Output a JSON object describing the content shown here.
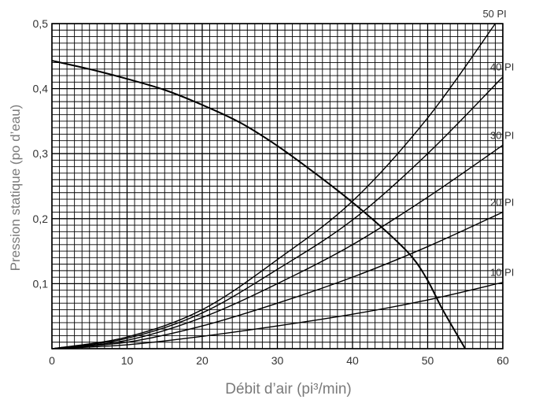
{
  "chart_data": {
    "type": "line",
    "xlabel": "Débit d’air (pi³/min)",
    "ylabel": "Pression statique (po d’eau)",
    "xlim": [
      0,
      60
    ],
    "ylim": [
      0,
      0.5
    ],
    "x_ticks": [
      "0",
      "10",
      "20",
      "30",
      "40",
      "50",
      "60"
    ],
    "y_ticks": [
      "0,1",
      "0,2",
      "0,3",
      "0,4",
      "0,5"
    ],
    "grid": true,
    "fan_curve": {
      "x": [
        0,
        5,
        10,
        15,
        20,
        25,
        30,
        35,
        40,
        45,
        48,
        50,
        52,
        55
      ],
      "y": [
        0.443,
        0.43,
        0.415,
        0.398,
        0.375,
        0.348,
        0.312,
        0.27,
        0.225,
        0.175,
        0.14,
        0.105,
        0.06,
        0
      ]
    },
    "series": [
      {
        "name": "10 PI",
        "x": [
          0,
          10,
          20,
          30,
          40,
          50,
          60
        ],
        "y": [
          0,
          0.006,
          0.019,
          0.035,
          0.053,
          0.075,
          0.102
        ]
      },
      {
        "name": "20 PI",
        "x": [
          0,
          10,
          20,
          30,
          40,
          50,
          60
        ],
        "y": [
          0,
          0.01,
          0.035,
          0.07,
          0.11,
          0.157,
          0.21
        ]
      },
      {
        "name": "30 PI",
        "x": [
          0,
          10,
          20,
          30,
          40,
          50,
          60
        ],
        "y": [
          0,
          0.013,
          0.048,
          0.1,
          0.16,
          0.233,
          0.313
        ]
      },
      {
        "name": "40 PI",
        "x": [
          0,
          10,
          20,
          30,
          40,
          50,
          60
        ],
        "y": [
          0,
          0.016,
          0.055,
          0.122,
          0.198,
          0.3,
          0.418
        ]
      },
      {
        "name": "50 PI",
        "x": [
          0,
          10,
          20,
          30,
          40,
          50,
          59
        ],
        "y": [
          0,
          0.018,
          0.06,
          0.137,
          0.227,
          0.355,
          0.5
        ]
      }
    ]
  }
}
